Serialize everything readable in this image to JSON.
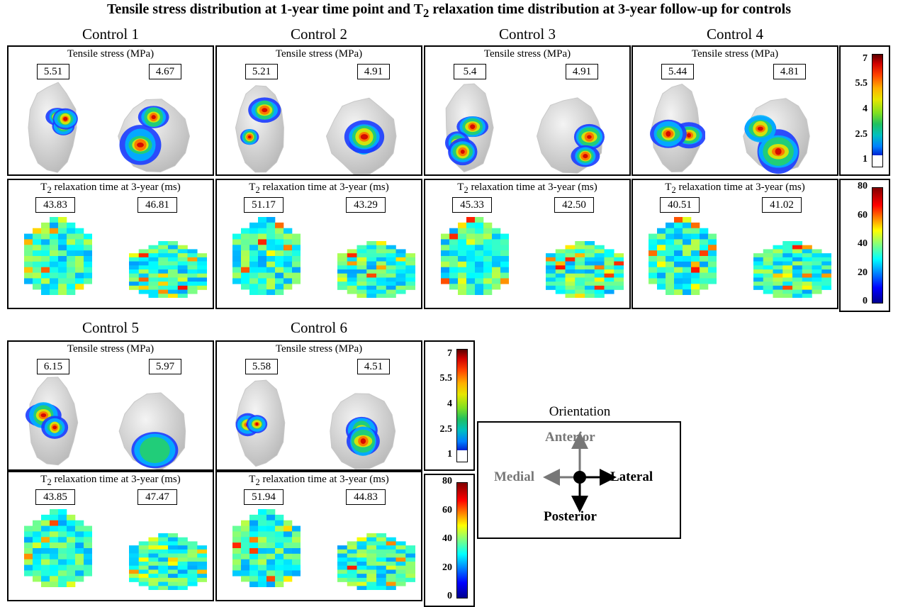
{
  "title": "Tensile stress distribution at 1-year time point and T2 relaxation time distribution at 3-year follow-up for controls",
  "stress_panel_title": "Tensile stress (MPa)",
  "t2_panel_title": "T2 relaxation time at 3-year (ms)",
  "controls": [
    {
      "label": "Control 1",
      "stress": [
        "5.51",
        "4.67"
      ],
      "t2": [
        "43.83",
        "46.81"
      ]
    },
    {
      "label": "Control 2",
      "stress": [
        "5.21",
        "4.91"
      ],
      "t2": [
        "51.17",
        "43.29"
      ]
    },
    {
      "label": "Control 3",
      "stress": [
        "5.4",
        "4.91"
      ],
      "t2": [
        "45.33",
        "42.50"
      ]
    },
    {
      "label": "Control 4",
      "stress": [
        "5.44",
        "4.81"
      ],
      "t2": [
        "40.51",
        "41.02"
      ]
    },
    {
      "label": "Control 5",
      "stress": [
        "6.15",
        "5.97"
      ],
      "t2": [
        "43.85",
        "47.47"
      ]
    },
    {
      "label": "Control 6",
      "stress": [
        "5.58",
        "4.51"
      ],
      "t2": [
        "51.94",
        "44.83"
      ]
    }
  ],
  "stress_colorbar_ticks": [
    "7",
    "5.5",
    "4",
    "2.5",
    "1"
  ],
  "t2_colorbar_ticks": [
    "80",
    "60",
    "40",
    "20",
    "0"
  ],
  "orientation": {
    "title": "Orientation",
    "anterior": "Anterior",
    "posterior": "Posterior",
    "medial": "Medial",
    "lateral": "Lateral"
  }
}
